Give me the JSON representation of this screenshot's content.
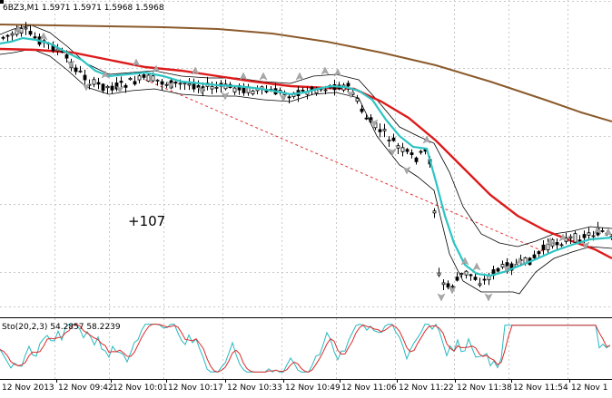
{
  "header": {
    "symbol_info": "6BZ3,M1  1.5971 1.5971 1.5968 1.5968"
  },
  "annotation": {
    "profit_label": "+107"
  },
  "subwindow": {
    "indicator_label": "Sto(20,2,3) 54.2857 58.2239"
  },
  "time_axis": {
    "labels": [
      "12 Nov 2013",
      "12 Nov 09:42",
      "12 Nov 10:01",
      "12 Nov 10:17",
      "12 Nov 10:33",
      "12 Nov 10:49",
      "12 Nov 11:06",
      "12 Nov 11:22",
      "12 Nov 11:38",
      "12 Nov 11:54",
      "12 Nov 1"
    ]
  },
  "colors": {
    "background": "#ffffff",
    "grid": "#c8c8c8",
    "candles": "#000000",
    "ma_fast": "#2ec4c4",
    "ma_slow": "#dd1b1b",
    "ma_long": "#8b5a2b",
    "envelope": "#000000",
    "trendline": "#e03030",
    "fractal": "#a8a8a8",
    "stoch_main": "#28b8c0",
    "stoch_signal": "#dd2a2a",
    "text": "#000000"
  },
  "icons": {
    "fractal_marker": "fractal-arrow-icon"
  }
}
